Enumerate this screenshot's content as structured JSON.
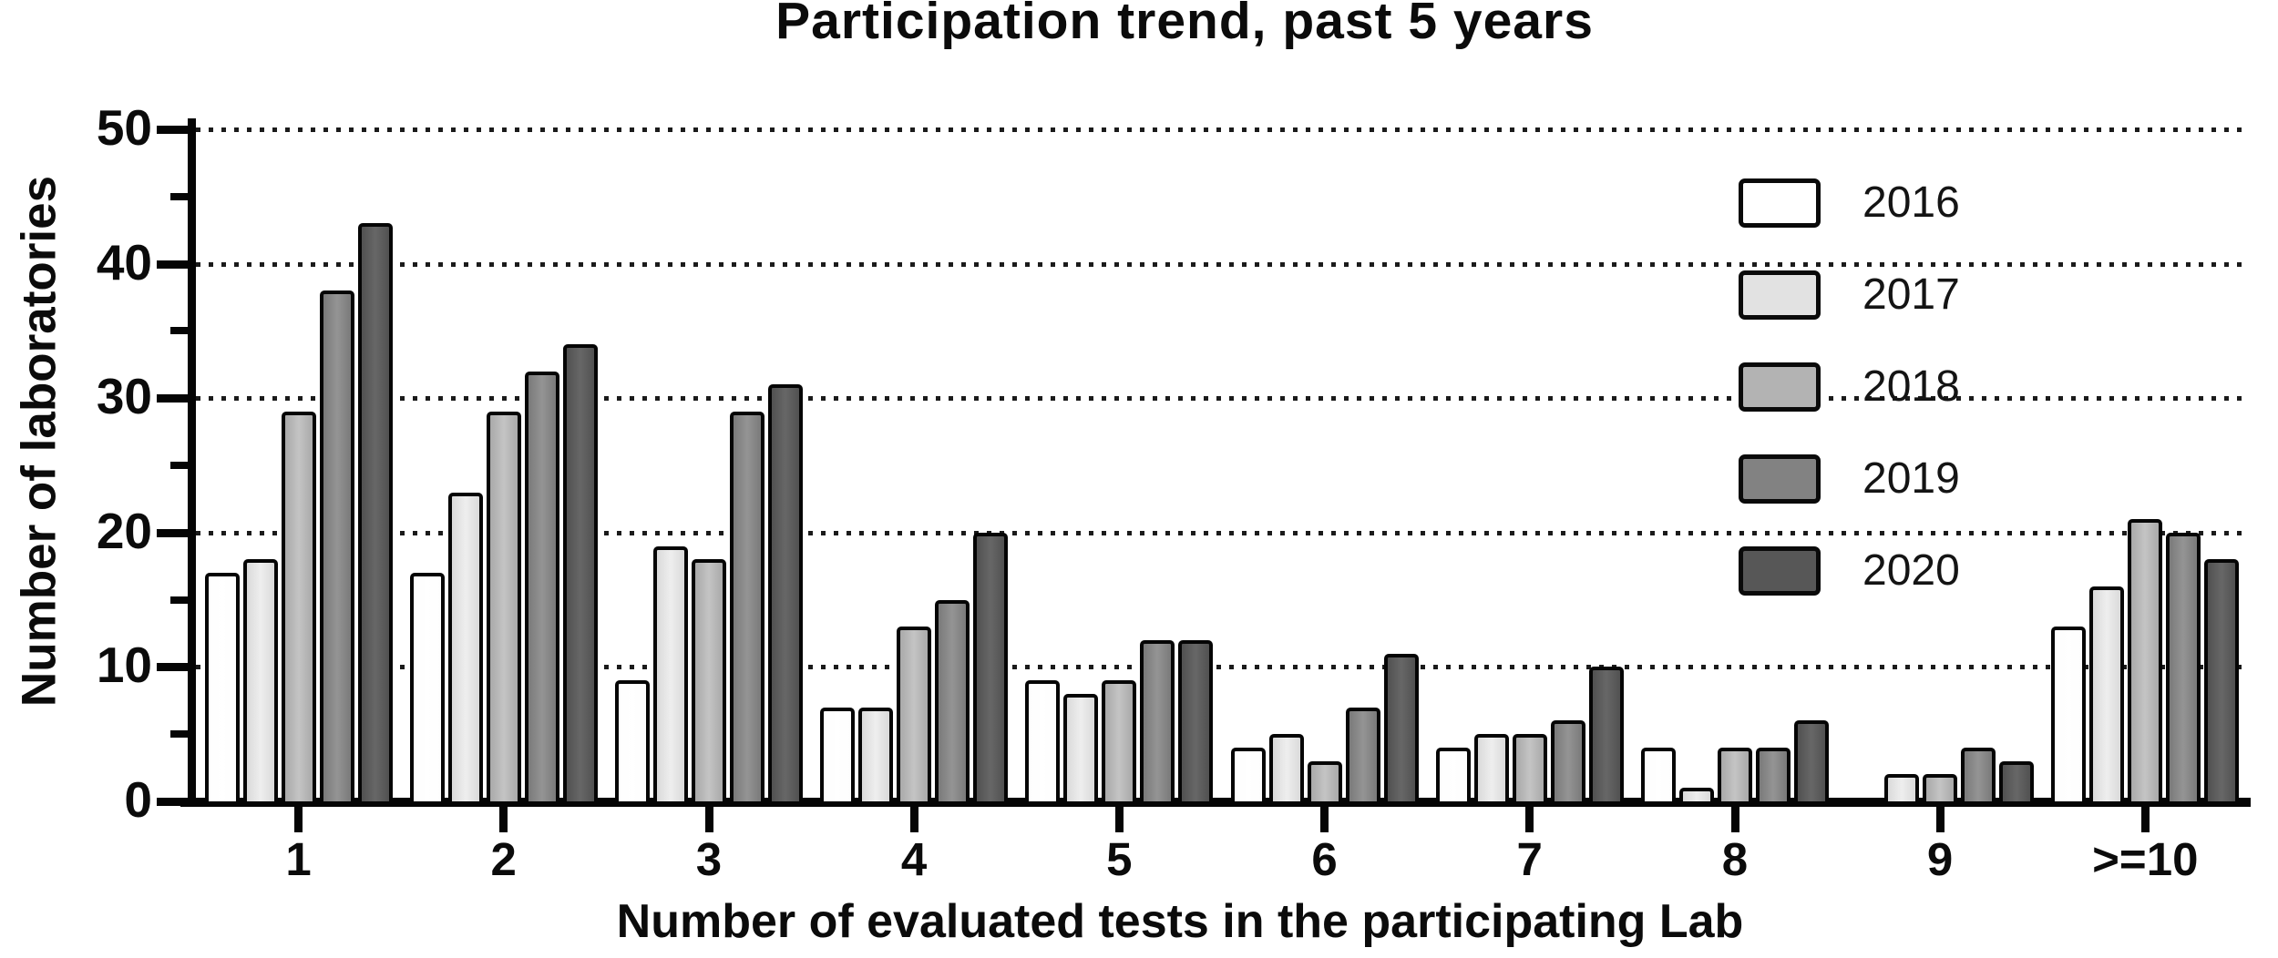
{
  "title": "Participation trend, past 5 years",
  "y_axis": {
    "label": "Number of laboratories",
    "major_ticks": [
      0,
      10,
      20,
      30,
      40,
      50
    ],
    "minor_ticks": [
      5,
      15,
      25,
      35,
      45
    ]
  },
  "x_axis": {
    "label": "Number of evaluated tests in the participating Lab"
  },
  "legend": {
    "position": "upper-right-inside-plot",
    "entries": [
      {
        "label": "2016",
        "color": "#ffffff"
      },
      {
        "label": "2017",
        "color": "#e2e2e2"
      },
      {
        "label": "2018",
        "color": "#b3b3b3"
      },
      {
        "label": "2019",
        "color": "#828282"
      },
      {
        "label": "2020",
        "color": "#575757"
      }
    ]
  },
  "chart_data": {
    "type": "bar",
    "title": "Participation trend, past 5 years",
    "xlabel": "Number of evaluated tests in the participating Lab",
    "ylabel": "Number of laboratories",
    "categories": [
      "1",
      "2",
      "3",
      "4",
      "5",
      "6",
      "7",
      "8",
      "9",
      ">=10"
    ],
    "series": [
      {
        "name": "2016",
        "color": "#fdfdfd",
        "highlight": "#ffffff",
        "values": [
          17,
          17,
          9,
          7,
          9,
          4,
          4,
          4,
          0,
          13
        ]
      },
      {
        "name": "2017",
        "color": "#dadada",
        "highlight": "#eeeeee",
        "values": [
          18,
          23,
          19,
          7,
          8,
          5,
          5,
          1,
          2,
          16
        ]
      },
      {
        "name": "2018",
        "color": "#a9a9a9",
        "highlight": "#c4c4c4",
        "values": [
          29,
          29,
          18,
          13,
          9,
          3,
          5,
          4,
          2,
          21
        ]
      },
      {
        "name": "2019",
        "color": "#7a7a7a",
        "highlight": "#949494",
        "values": [
          38,
          32,
          29,
          15,
          12,
          7,
          6,
          4,
          4,
          20
        ]
      },
      {
        "name": "2020",
        "color": "#515151",
        "highlight": "#676767",
        "values": [
          43,
          34,
          31,
          20,
          12,
          11,
          10,
          6,
          3,
          18
        ]
      }
    ],
    "ylim": [
      0,
      50
    ],
    "grid": "horizontal dotted lines at 10,20,30,40,50",
    "legend_position": "upper right"
  }
}
